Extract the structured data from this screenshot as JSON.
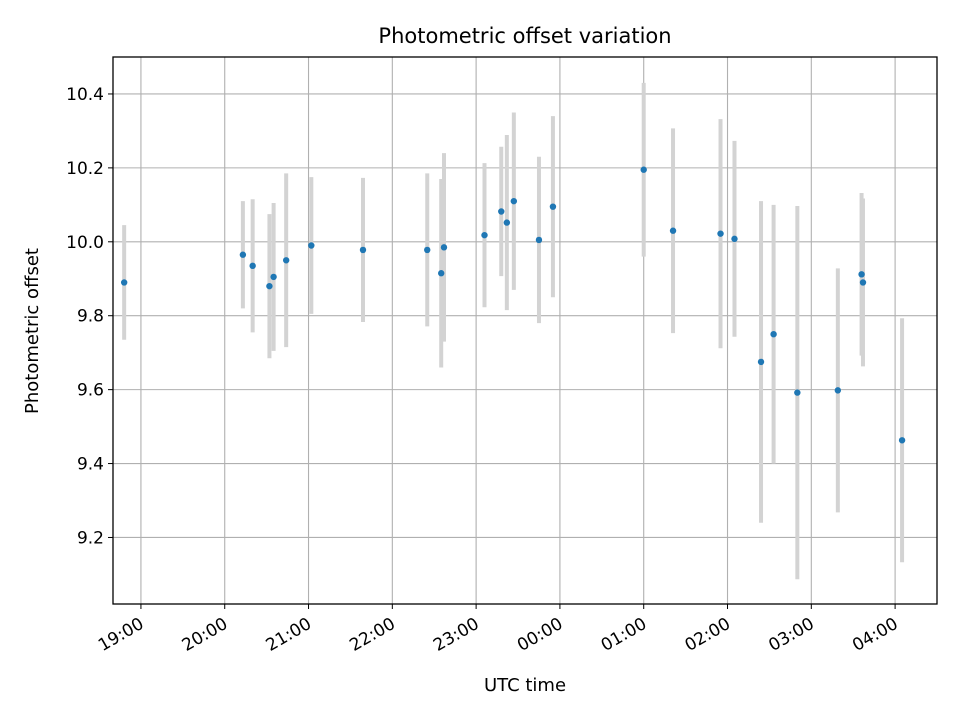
{
  "chart_data": {
    "type": "scatter",
    "title": "Photometric offset variation",
    "xlabel": "UTC time",
    "ylabel": "Photometric offset",
    "x_axis": "time",
    "ylim": [
      9.02,
      10.5
    ],
    "xlim": [
      "2000-01-01T18:40",
      "2000-01-02T04:30"
    ],
    "x_tick_labels": [
      "19:00",
      "20:00",
      "21:00",
      "22:00",
      "23:00",
      "00:00",
      "01:00",
      "02:00",
      "03:00",
      "04:00"
    ],
    "y_tick_labels": [
      "9.2",
      "9.4",
      "9.6",
      "9.8",
      "10.0",
      "10.2",
      "10.4"
    ],
    "grid": true,
    "colors": {
      "point": "#1f77b4",
      "errorbar": "#d3d3d3",
      "grid": "#b0b0b0"
    },
    "series": [
      {
        "points": [
          {
            "t": "2000-01-01T18:48",
            "y": 9.89,
            "err": 0.155
          },
          {
            "t": "2000-01-01T20:13",
            "y": 9.965,
            "err": 0.145
          },
          {
            "t": "2000-01-01T20:20",
            "y": 9.935,
            "err": 0.18
          },
          {
            "t": "2000-01-01T20:32",
            "y": 9.88,
            "err": 0.195
          },
          {
            "t": "2000-01-01T20:35",
            "y": 9.905,
            "err": 0.2
          },
          {
            "t": "2000-01-01T20:44",
            "y": 9.95,
            "err": 0.235
          },
          {
            "t": "2000-01-01T21:02",
            "y": 9.99,
            "err": 0.185
          },
          {
            "t": "2000-01-01T21:39",
            "y": 9.978,
            "err": 0.195
          },
          {
            "t": "2000-01-01T22:25",
            "y": 9.978,
            "err": 0.207
          },
          {
            "t": "2000-01-01T22:35",
            "y": 9.915,
            "err": 0.255
          },
          {
            "t": "2000-01-01T22:37",
            "y": 9.985,
            "err": 0.255
          },
          {
            "t": "2000-01-01T23:06",
            "y": 10.018,
            "err": 0.195
          },
          {
            "t": "2000-01-01T23:18",
            "y": 10.082,
            "err": 0.175
          },
          {
            "t": "2000-01-01T23:22",
            "y": 10.052,
            "err": 0.237
          },
          {
            "t": "2000-01-01T23:27",
            "y": 10.11,
            "err": 0.24
          },
          {
            "t": "2000-01-01T23:45",
            "y": 10.005,
            "err": 0.225
          },
          {
            "t": "2000-01-01T23:55",
            "y": 10.095,
            "err": 0.245
          },
          {
            "t": "2000-01-02T01:00",
            "y": 10.195,
            "err": 0.235
          },
          {
            "t": "2000-01-02T01:21",
            "y": 10.03,
            "err": 0.277
          },
          {
            "t": "2000-01-02T01:55",
            "y": 10.022,
            "err": 0.31
          },
          {
            "t": "2000-01-02T02:05",
            "y": 10.008,
            "err": 0.265
          },
          {
            "t": "2000-01-02T02:24",
            "y": 9.675,
            "err": 0.435
          },
          {
            "t": "2000-01-02T02:33",
            "y": 9.75,
            "err": 0.35
          },
          {
            "t": "2000-01-02T02:50",
            "y": 9.592,
            "err": 0.505
          },
          {
            "t": "2000-01-02T03:19",
            "y": 9.598,
            "err": 0.33
          },
          {
            "t": "2000-01-02T03:36",
            "y": 9.912,
            "err": 0.22
          },
          {
            "t": "2000-01-02T03:37",
            "y": 9.89,
            "err": 0.227
          },
          {
            "t": "2000-01-02T04:05",
            "y": 9.463,
            "err": 0.33
          }
        ]
      }
    ]
  }
}
